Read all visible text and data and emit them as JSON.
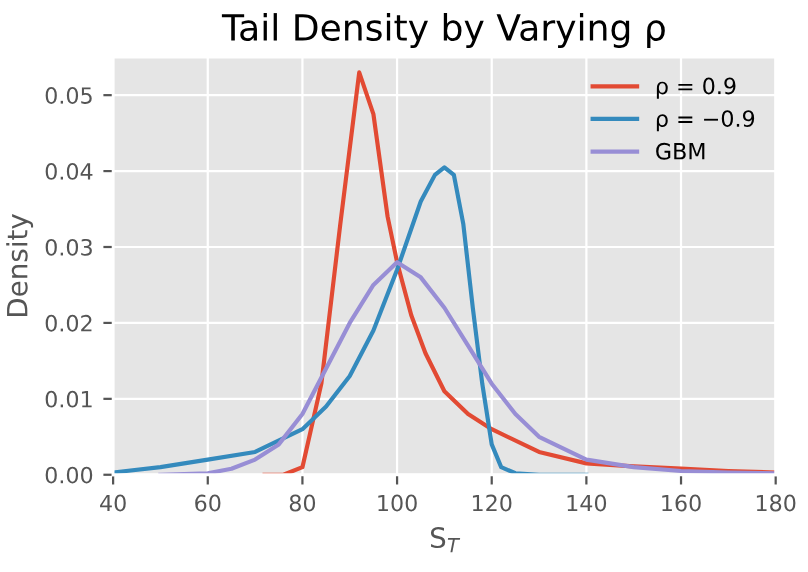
{
  "chart_data": {
    "type": "line",
    "title": "Tail Density by Varying ρ",
    "xlabel": "S$_{T}$",
    "ylabel": "Density",
    "xlim": [
      40,
      180
    ],
    "ylim": [
      0,
      0.055
    ],
    "xticks": [
      40,
      60,
      80,
      100,
      120,
      140,
      160,
      180
    ],
    "yticks": [
      {
        "value": 0,
        "label": "0.00"
      },
      0.01,
      0.02,
      0.03,
      0.04,
      0.05
    ],
    "grid": true,
    "legend": "top right",
    "marker": "none",
    "line_style": "solid",
    "series": [
      {
        "name": "ρ = 0.9",
        "color": "#e24a33",
        "x": [
          72,
          76,
          80,
          84,
          88,
          92,
          95,
          98,
          100,
          103,
          106,
          110,
          115,
          120,
          130,
          140,
          150,
          160,
          170,
          180
        ],
        "values": [
          0.0,
          0.0,
          0.001,
          0.012,
          0.033,
          0.053,
          0.0475,
          0.034,
          0.028,
          0.021,
          0.016,
          0.011,
          0.008,
          0.006,
          0.003,
          0.0015,
          0.0011,
          0.0008,
          0.0005,
          0.0003
        ]
      },
      {
        "name": "ρ = −0.9",
        "color": "#348abd",
        "x": [
          40,
          50,
          60,
          70,
          80,
          85,
          90,
          95,
          100,
          105,
          108,
          110,
          112,
          114,
          116,
          118,
          120,
          122,
          125,
          130,
          140
        ],
        "values": [
          0.0003,
          0.001,
          0.002,
          0.003,
          0.006,
          0.009,
          0.013,
          0.019,
          0.027,
          0.036,
          0.0395,
          0.0405,
          0.0395,
          0.033,
          0.022,
          0.012,
          0.004,
          0.001,
          0.0002,
          0.0,
          0.0
        ]
      },
      {
        "name": "GBM",
        "color": "#988ed5",
        "x": [
          50,
          60,
          65,
          70,
          75,
          80,
          85,
          90,
          95,
          100,
          105,
          110,
          115,
          120,
          125,
          130,
          140,
          150,
          160,
          170,
          180
        ],
        "values": [
          0.0,
          0.0002,
          0.0008,
          0.002,
          0.004,
          0.008,
          0.014,
          0.02,
          0.025,
          0.028,
          0.026,
          0.022,
          0.017,
          0.012,
          0.008,
          0.005,
          0.002,
          0.001,
          0.0005,
          0.0003,
          0.0002
        ]
      }
    ]
  }
}
